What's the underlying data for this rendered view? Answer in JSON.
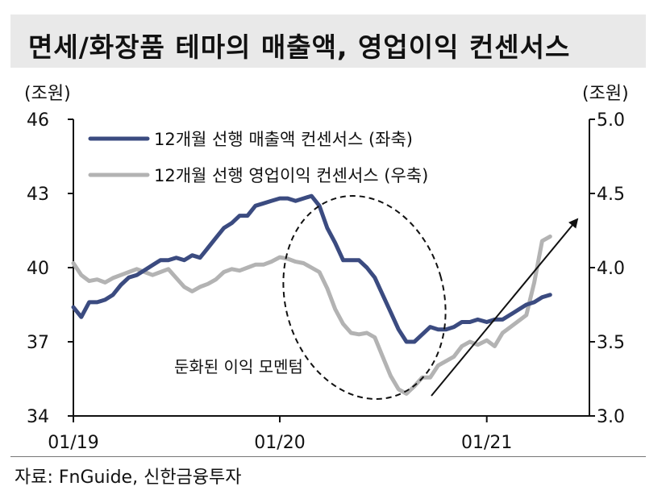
{
  "title": "면세/화장품 테마의 매출액, 영업이익 컨센서스",
  "source": "자료: FnGuide, 신한금융투자",
  "chart_data": {
    "type": "line",
    "left_unit": "(조원)",
    "right_unit": "(조원)",
    "x_ticks": [
      "01/19",
      "01/20",
      "01/21"
    ],
    "left_axis": {
      "range": [
        34,
        46
      ],
      "ticks": [
        "34",
        "37",
        "40",
        "43",
        "46"
      ]
    },
    "right_axis": {
      "range": [
        3.0,
        5.0
      ],
      "ticks": [
        "3.0",
        "3.5",
        "4.0",
        "4.5",
        "5.0"
      ]
    },
    "annotation": "둔화된 이익 모멘텀",
    "grid": false,
    "legend_position": "top-left",
    "series": [
      {
        "name": "12개월 선행 매출액 컨센서스 (좌축)",
        "axis": "left",
        "color": "#3b4b80",
        "points": [
          [
            "2019-01-01",
            38.4
          ],
          [
            "2019-01-15",
            38.0
          ],
          [
            "2019-01-29",
            38.6
          ],
          [
            "2019-02-12",
            38.6
          ],
          [
            "2019-02-26",
            38.7
          ],
          [
            "2019-03-12",
            38.9
          ],
          [
            "2019-03-26",
            39.3
          ],
          [
            "2019-04-09",
            39.6
          ],
          [
            "2019-04-23",
            39.7
          ],
          [
            "2019-05-07",
            39.9
          ],
          [
            "2019-05-21",
            40.1
          ],
          [
            "2019-06-04",
            40.3
          ],
          [
            "2019-06-18",
            40.3
          ],
          [
            "2019-07-02",
            40.4
          ],
          [
            "2019-07-16",
            40.3
          ],
          [
            "2019-07-30",
            40.5
          ],
          [
            "2019-08-13",
            40.4
          ],
          [
            "2019-08-27",
            40.8
          ],
          [
            "2019-09-10",
            41.2
          ],
          [
            "2019-09-24",
            41.6
          ],
          [
            "2019-10-08",
            41.8
          ],
          [
            "2019-10-22",
            42.1
          ],
          [
            "2019-11-05",
            42.1
          ],
          [
            "2019-11-19",
            42.5
          ],
          [
            "2019-12-03",
            42.6
          ],
          [
            "2019-12-17",
            42.7
          ],
          [
            "2020-01-01",
            42.8
          ],
          [
            "2020-01-15",
            42.8
          ],
          [
            "2020-01-29",
            42.7
          ],
          [
            "2020-02-12",
            42.8
          ],
          [
            "2020-02-26",
            42.9
          ],
          [
            "2020-03-11",
            42.5
          ],
          [
            "2020-03-25",
            41.6
          ],
          [
            "2020-04-08",
            41.0
          ],
          [
            "2020-04-22",
            40.3
          ],
          [
            "2020-05-06",
            40.3
          ],
          [
            "2020-05-20",
            40.3
          ],
          [
            "2020-06-03",
            40.0
          ],
          [
            "2020-06-17",
            39.6
          ],
          [
            "2020-07-01",
            38.9
          ],
          [
            "2020-07-15",
            38.2
          ],
          [
            "2020-07-29",
            37.5
          ],
          [
            "2020-08-12",
            37.0
          ],
          [
            "2020-08-26",
            37.0
          ],
          [
            "2020-09-09",
            37.3
          ],
          [
            "2020-09-23",
            37.6
          ],
          [
            "2020-10-07",
            37.5
          ],
          [
            "2020-10-21",
            37.5
          ],
          [
            "2020-11-04",
            37.6
          ],
          [
            "2020-11-18",
            37.8
          ],
          [
            "2020-12-02",
            37.8
          ],
          [
            "2020-12-16",
            37.9
          ],
          [
            "2021-01-01",
            37.8
          ],
          [
            "2021-01-15",
            37.9
          ],
          [
            "2021-01-29",
            37.9
          ],
          [
            "2021-02-12",
            38.1
          ],
          [
            "2021-02-26",
            38.3
          ],
          [
            "2021-03-12",
            38.5
          ],
          [
            "2021-03-26",
            38.6
          ],
          [
            "2021-04-09",
            38.8
          ],
          [
            "2021-04-23",
            38.9
          ]
        ]
      },
      {
        "name": "12개월 선행 영업이익 컨센서스 (우축)",
        "axis": "right",
        "color": "#b3b3b3",
        "points": [
          [
            "2019-01-01",
            4.03
          ],
          [
            "2019-01-15",
            3.95
          ],
          [
            "2019-01-29",
            3.91
          ],
          [
            "2019-02-12",
            3.92
          ],
          [
            "2019-02-26",
            3.9
          ],
          [
            "2019-03-12",
            3.93
          ],
          [
            "2019-03-26",
            3.95
          ],
          [
            "2019-04-09",
            3.97
          ],
          [
            "2019-04-23",
            3.99
          ],
          [
            "2019-05-07",
            3.97
          ],
          [
            "2019-05-21",
            3.95
          ],
          [
            "2019-06-04",
            3.97
          ],
          [
            "2019-06-18",
            3.99
          ],
          [
            "2019-07-02",
            3.93
          ],
          [
            "2019-07-16",
            3.87
          ],
          [
            "2019-07-30",
            3.84
          ],
          [
            "2019-08-13",
            3.87
          ],
          [
            "2019-08-27",
            3.89
          ],
          [
            "2019-09-10",
            3.92
          ],
          [
            "2019-09-24",
            3.97
          ],
          [
            "2019-10-08",
            3.99
          ],
          [
            "2019-10-22",
            3.98
          ],
          [
            "2019-11-05",
            4.0
          ],
          [
            "2019-11-19",
            4.02
          ],
          [
            "2019-12-03",
            4.02
          ],
          [
            "2019-12-17",
            4.04
          ],
          [
            "2020-01-01",
            4.07
          ],
          [
            "2020-01-15",
            4.06
          ],
          [
            "2020-01-29",
            4.04
          ],
          [
            "2020-02-12",
            4.03
          ],
          [
            "2020-02-26",
            4.0
          ],
          [
            "2020-03-11",
            3.97
          ],
          [
            "2020-03-25",
            3.86
          ],
          [
            "2020-04-08",
            3.72
          ],
          [
            "2020-04-22",
            3.62
          ],
          [
            "2020-05-06",
            3.56
          ],
          [
            "2020-05-20",
            3.55
          ],
          [
            "2020-06-03",
            3.56
          ],
          [
            "2020-06-17",
            3.53
          ],
          [
            "2020-07-01",
            3.4
          ],
          [
            "2020-07-15",
            3.27
          ],
          [
            "2020-07-29",
            3.18
          ],
          [
            "2020-08-12",
            3.15
          ],
          [
            "2020-08-26",
            3.2
          ],
          [
            "2020-09-09",
            3.26
          ],
          [
            "2020-09-23",
            3.26
          ],
          [
            "2020-10-07",
            3.34
          ],
          [
            "2020-10-21",
            3.37
          ],
          [
            "2020-11-04",
            3.4
          ],
          [
            "2020-11-18",
            3.47
          ],
          [
            "2020-12-02",
            3.5
          ],
          [
            "2020-12-16",
            3.48
          ],
          [
            "2021-01-01",
            3.51
          ],
          [
            "2021-01-15",
            3.47
          ],
          [
            "2021-01-29",
            3.56
          ],
          [
            "2021-02-12",
            3.6
          ],
          [
            "2021-02-26",
            3.64
          ],
          [
            "2021-03-12",
            3.68
          ],
          [
            "2021-03-26",
            3.9
          ],
          [
            "2021-04-09",
            4.18
          ],
          [
            "2021-04-23",
            4.21
          ]
        ]
      }
    ]
  }
}
